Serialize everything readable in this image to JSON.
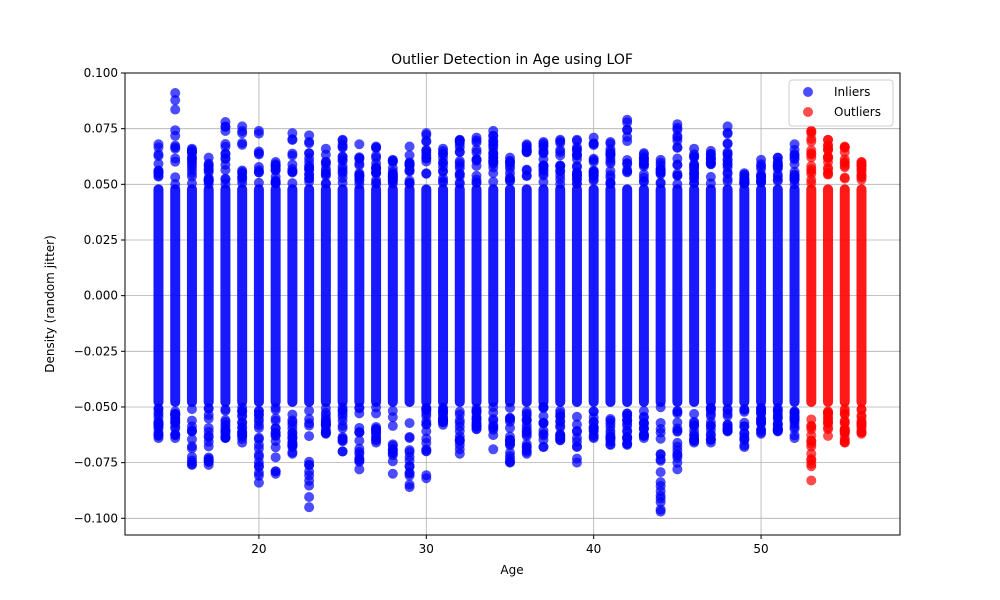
{
  "chart_data": {
    "type": "scatter",
    "title": "Outlier Detection in Age using LOF",
    "xlabel": "Age",
    "ylabel": "Density (random jitter)",
    "xlim": [
      12.0,
      58.3
    ],
    "ylim": [
      -0.1075,
      0.1
    ],
    "xticks": [
      {
        "value": 20,
        "label": "20"
      },
      {
        "value": 30,
        "label": "30"
      },
      {
        "value": 40,
        "label": "40"
      },
      {
        "value": 50,
        "label": "50"
      }
    ],
    "yticks": [
      {
        "value": 0.1,
        "label": "0.100"
      },
      {
        "value": 0.075,
        "label": "0.075"
      },
      {
        "value": 0.05,
        "label": "0.050"
      },
      {
        "value": 0.025,
        "label": "0.025"
      },
      {
        "value": 0.0,
        "label": "0.000"
      },
      {
        "value": -0.025,
        "label": "−0.025"
      },
      {
        "value": -0.05,
        "label": "−0.050"
      },
      {
        "value": -0.075,
        "label": "−0.075"
      },
      {
        "value": -0.1,
        "label": "−0.100"
      }
    ],
    "grid": true,
    "legend_position": "top-right",
    "series": [
      {
        "name": "Inliers",
        "color": "#0000ff",
        "columns": [
          {
            "x": 14,
            "ymin": -0.064,
            "ymax": 0.068
          },
          {
            "x": 15,
            "ymin": -0.064,
            "ymax": 0.091
          },
          {
            "x": 16,
            "ymin": -0.076,
            "ymax": 0.066
          },
          {
            "x": 17,
            "ymin": -0.076,
            "ymax": 0.062
          },
          {
            "x": 18,
            "ymin": -0.064,
            "ymax": 0.078
          },
          {
            "x": 19,
            "ymin": -0.066,
            "ymax": 0.076
          },
          {
            "x": 20,
            "ymin": -0.084,
            "ymax": 0.074
          },
          {
            "x": 21,
            "ymin": -0.08,
            "ymax": 0.06
          },
          {
            "x": 22,
            "ymin": -0.071,
            "ymax": 0.073
          },
          {
            "x": 23,
            "ymin": -0.095,
            "ymax": 0.072
          },
          {
            "x": 24,
            "ymin": -0.062,
            "ymax": 0.066
          },
          {
            "x": 25,
            "ymin": -0.07,
            "ymax": 0.07
          },
          {
            "x": 26,
            "ymin": -0.078,
            "ymax": 0.068
          },
          {
            "x": 27,
            "ymin": -0.066,
            "ymax": 0.067
          },
          {
            "x": 28,
            "ymin": -0.08,
            "ymax": 0.061
          },
          {
            "x": 29,
            "ymin": -0.086,
            "ymax": 0.067
          },
          {
            "x": 30,
            "ymin": -0.082,
            "ymax": 0.073
          },
          {
            "x": 31,
            "ymin": -0.058,
            "ymax": 0.066
          },
          {
            "x": 32,
            "ymin": -0.071,
            "ymax": 0.07
          },
          {
            "x": 33,
            "ymin": -0.06,
            "ymax": 0.071
          },
          {
            "x": 34,
            "ymin": -0.069,
            "ymax": 0.074
          },
          {
            "x": 35,
            "ymin": -0.075,
            "ymax": 0.062
          },
          {
            "x": 36,
            "ymin": -0.071,
            "ymax": 0.068
          },
          {
            "x": 37,
            "ymin": -0.068,
            "ymax": 0.069
          },
          {
            "x": 38,
            "ymin": -0.065,
            "ymax": 0.07
          },
          {
            "x": 39,
            "ymin": -0.075,
            "ymax": 0.07
          },
          {
            "x": 40,
            "ymin": -0.064,
            "ymax": 0.071
          },
          {
            "x": 41,
            "ymin": -0.067,
            "ymax": 0.069
          },
          {
            "x": 42,
            "ymin": -0.067,
            "ymax": 0.079
          },
          {
            "x": 43,
            "ymin": -0.064,
            "ymax": 0.064
          },
          {
            "x": 44,
            "ymin": -0.097,
            "ymax": 0.061
          },
          {
            "x": 45,
            "ymin": -0.078,
            "ymax": 0.077
          },
          {
            "x": 46,
            "ymin": -0.066,
            "ymax": 0.066
          },
          {
            "x": 47,
            "ymin": -0.066,
            "ymax": 0.065
          },
          {
            "x": 48,
            "ymin": -0.061,
            "ymax": 0.076
          },
          {
            "x": 49,
            "ymin": -0.068,
            "ymax": 0.055
          },
          {
            "x": 50,
            "ymin": -0.062,
            "ymax": 0.061
          },
          {
            "x": 51,
            "ymin": -0.061,
            "ymax": 0.062
          },
          {
            "x": 52,
            "ymin": -0.064,
            "ymax": 0.068
          }
        ]
      },
      {
        "name": "Outliers",
        "color": "#ff0000",
        "columns": [
          {
            "x": 53,
            "ymin": -0.083,
            "ymax": 0.074
          },
          {
            "x": 54,
            "ymin": -0.063,
            "ymax": 0.07
          },
          {
            "x": 55,
            "ymin": -0.066,
            "ymax": 0.067
          },
          {
            "x": 56,
            "ymin": -0.062,
            "ymax": 0.06
          }
        ]
      }
    ]
  }
}
